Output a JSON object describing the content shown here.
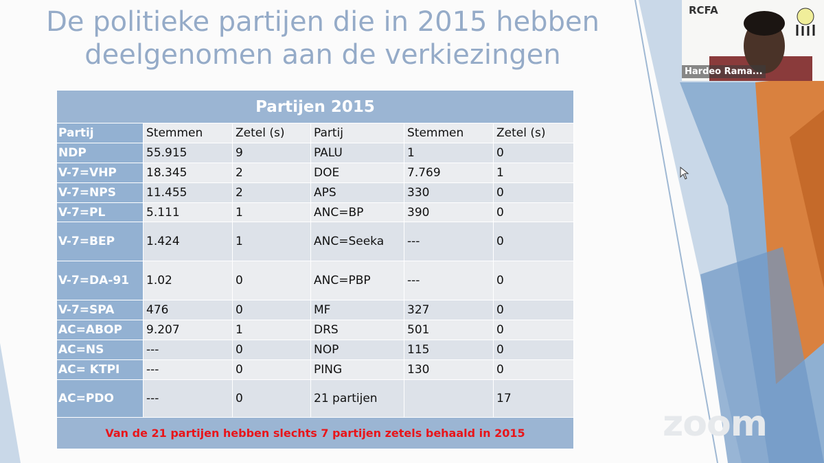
{
  "slide": {
    "title": "De politieke partijen die in 2015 hebben deelgenomen aan de verkiezingen",
    "table": {
      "caption": "Partijen 2015",
      "headers": [
        "Partij",
        "Stemmen",
        "Zetel (s)",
        "Partij",
        "Stemmen",
        "Zetel (s)"
      ],
      "rows": [
        [
          "NDP",
          "55.915",
          "9",
          "PALU",
          "1",
          "0"
        ],
        [
          "V-7=VHP",
          "18.345",
          "2",
          "DOE",
          "7.769",
          "1"
        ],
        [
          "V-7=NPS",
          "11.455",
          "2",
          "APS",
          "330",
          "0"
        ],
        [
          "V-7=PL",
          "5.111",
          "1",
          "ANC=BP",
          "390",
          "0"
        ],
        [
          "V-7=BEP",
          "1.424",
          "1",
          "ANC=Seeka",
          "---",
          "0"
        ],
        [
          "V-7=DA-91",
          "1.02",
          "0",
          "ANC=PBP",
          "---",
          "0"
        ],
        [
          "V-7=SPA",
          "476",
          "0",
          "MF",
          "327",
          "0"
        ],
        [
          "AC=ABOP",
          "9.207",
          "1",
          "DRS",
          "501",
          "0"
        ],
        [
          "AC=NS",
          "---",
          "0",
          "NOP",
          "115",
          "0"
        ],
        [
          "AC= KTPI",
          "---",
          "0",
          "PING",
          "130",
          "0"
        ],
        [
          "AC=PDO",
          "---",
          "0",
          "21  partijen",
          "",
          "17"
        ]
      ],
      "footer": "Van de 21 partijen hebben slechts 7 partijen zetels behaald in 2015"
    }
  },
  "video": {
    "participant_name": "Hardeo Rama...",
    "logo_text": "RCFA"
  },
  "watermark": "zoom",
  "colors": {
    "title": "#95abc8",
    "header": "#9bb5d3",
    "footer_text": "#e8151a"
  }
}
